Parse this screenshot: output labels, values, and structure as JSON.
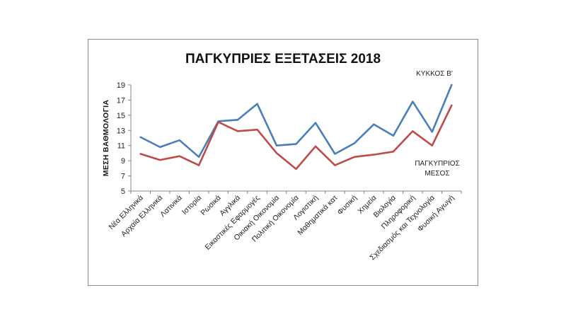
{
  "chart_data": {
    "type": "line",
    "title": "ΠΑΓΚΥΠΡΙΕΣ ΕΞΕΤΑΣΕΙΣ 2018",
    "xlabel": "",
    "ylabel": "ΜΕΣΗ ΒΑΘΜΟΛΟΓΙΑ",
    "ylim": [
      5,
      19
    ],
    "yticks": [
      "19",
      "17",
      "15",
      "13",
      "11",
      "9",
      "7",
      "5"
    ],
    "grid": false,
    "categories": [
      "Νέα Ελληνικά",
      "Αρχαία Ελληνικά",
      "Λατινικά",
      "Ιστορία",
      "Ρωσικά",
      "Αγγλικά",
      "Εικαστικές Εφαρμογές",
      "Οικιακή Οικονομία",
      "Πολιτική Οικονομία",
      "Λογιστική",
      "Μαθηματικά  κατ",
      "Φυσική",
      "Χημεία",
      "Βιολογία",
      "Πληροφορική",
      "Σχεδιασμός και Τεχνολογία",
      "Φυσική Αγωγή"
    ],
    "series": [
      {
        "name": "ΚΥΚΚΟΣ Β'",
        "color": "#4a7ebb",
        "values": [
          12.1,
          10.8,
          11.7,
          9.5,
          14.2,
          14.4,
          16.5,
          11.0,
          11.2,
          14.0,
          9.9,
          11.3,
          13.8,
          12.3,
          16.8,
          12.8,
          19.0
        ]
      },
      {
        "name": "ΠΑΓΚΥΠΡΙΟΣ ΜΕΣΟΣ",
        "color": "#be4b48",
        "values": [
          9.9,
          9.1,
          9.6,
          8.4,
          14.1,
          12.9,
          13.1,
          10.0,
          7.9,
          10.9,
          8.4,
          9.5,
          9.8,
          10.2,
          12.9,
          11.0,
          16.3
        ]
      }
    ],
    "series_labels": [
      {
        "lines": [
          "ΚΥΚΚΟΣ Β'"
        ]
      },
      {
        "lines": [
          "ΠΑΓΚΥΠΡΙΟΣ",
          "ΜΕΣΟΣ"
        ]
      }
    ]
  }
}
